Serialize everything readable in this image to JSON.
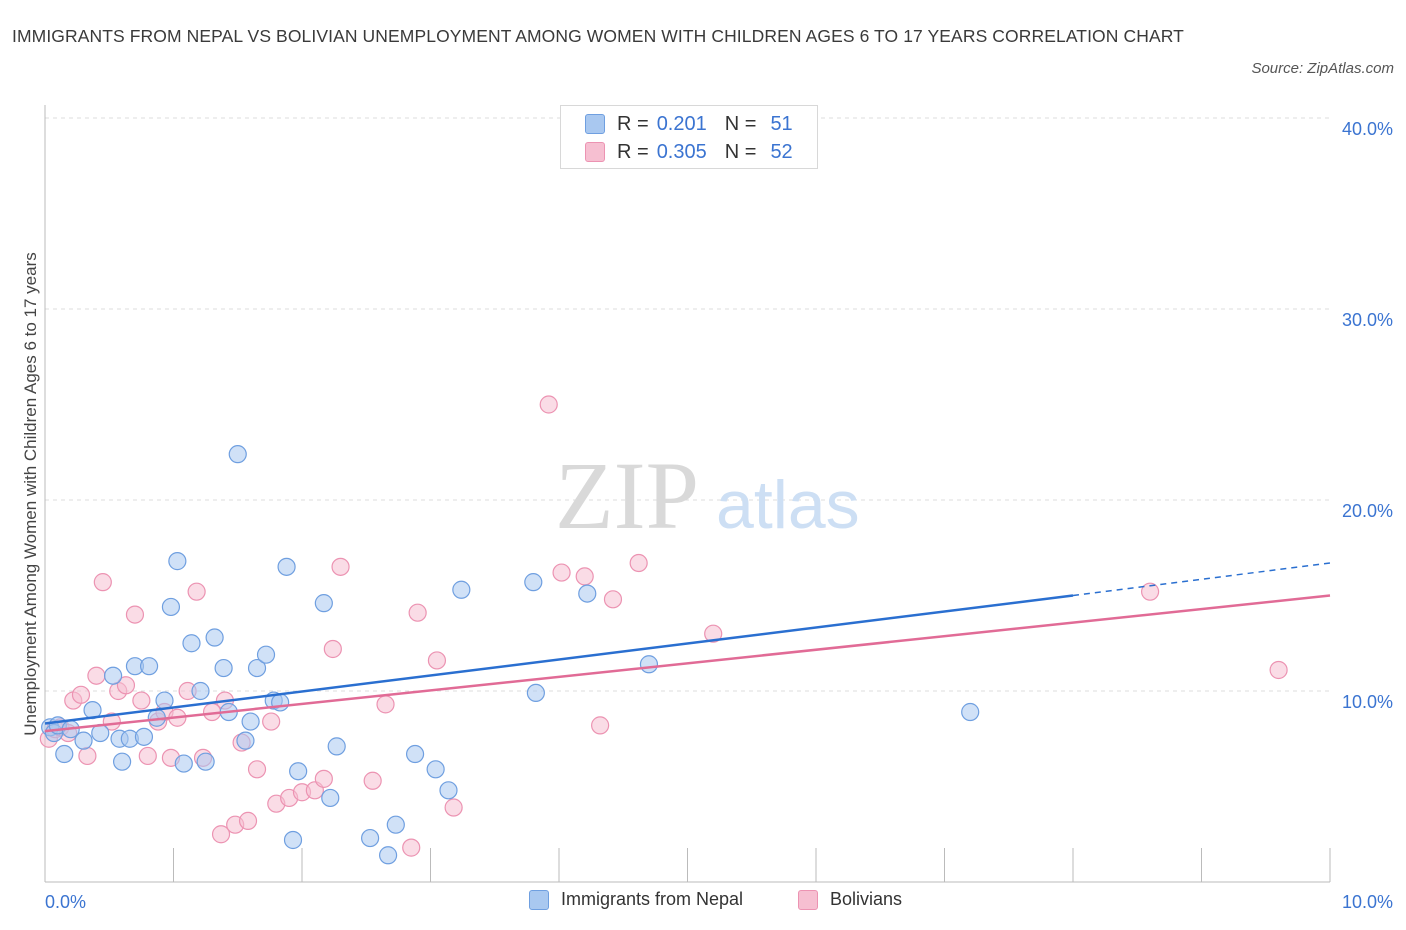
{
  "header": {
    "title": "IMMIGRANTS FROM NEPAL VS BOLIVIAN UNEMPLOYMENT AMONG WOMEN WITH CHILDREN AGES 6 TO 17 YEARS CORRELATION CHART",
    "source": "Source: ZipAtlas.com"
  },
  "watermark": {
    "zip": "ZIP",
    "atlas": "atlas"
  },
  "legend": {
    "rows": [
      {
        "r_label": "R =",
        "r_value": "0.201",
        "n_label": "N =",
        "n_value": "51"
      },
      {
        "r_label": "R =",
        "r_value": "0.305",
        "n_label": "N =",
        "n_value": "52"
      }
    ]
  },
  "bottom_legend": {
    "series1": "Immigrants from Nepal",
    "series2": "Bolivians"
  },
  "colors": {
    "nepal_fill": "#a9c8f0",
    "nepal_stroke": "#6f9fe0",
    "nepal_line": "#2a6fd0",
    "bolivian_fill": "#f6bfd1",
    "bolivian_stroke": "#ec93b2",
    "bolivian_line": "#e16b96",
    "axis_label": "#3b74d1",
    "grid": "#dcdcdc"
  },
  "chart_data": {
    "type": "scatter",
    "title": "IMMIGRANTS FROM NEPAL VS BOLIVIAN UNEMPLOYMENT AMONG WOMEN WITH CHILDREN AGES 6 TO 17 YEARS CORRELATION CHART",
    "xlabel": "",
    "ylabel": "Unemployment Among Women with Children Ages 6 to 17 years",
    "xlim": [
      0,
      10
    ],
    "ylim": [
      0,
      40
    ],
    "x_tick_labels": [
      "0.0%",
      "10.0%"
    ],
    "y_ticks": [
      10,
      20,
      30,
      40
    ],
    "y_tick_labels": [
      "10.0%",
      "20.0%",
      "30.0%",
      "40.0%"
    ],
    "grid": true,
    "legend_position": "top-center",
    "series": [
      {
        "name": "Immigrants from Nepal",
        "R": 0.201,
        "N": 51,
        "trend": {
          "x": [
            0,
            8.0
          ],
          "y": [
            8.3,
            15.0
          ],
          "dashed_to": [
            10,
            16.7
          ]
        },
        "points": [
          [
            0.04,
            8.1
          ],
          [
            0.07,
            7.8
          ],
          [
            0.1,
            8.2
          ],
          [
            0.15,
            6.7
          ],
          [
            0.2,
            8.0
          ],
          [
            0.3,
            7.4
          ],
          [
            0.37,
            9.0
          ],
          [
            0.43,
            7.8
          ],
          [
            0.53,
            10.8
          ],
          [
            0.58,
            7.5
          ],
          [
            0.6,
            6.3
          ],
          [
            0.66,
            7.5
          ],
          [
            0.7,
            11.3
          ],
          [
            0.77,
            7.6
          ],
          [
            0.81,
            11.3
          ],
          [
            0.87,
            8.6
          ],
          [
            0.93,
            9.5
          ],
          [
            0.98,
            14.4
          ],
          [
            1.03,
            16.8
          ],
          [
            1.08,
            6.2
          ],
          [
            1.14,
            12.5
          ],
          [
            1.21,
            10.0
          ],
          [
            1.25,
            6.3
          ],
          [
            1.32,
            12.8
          ],
          [
            1.39,
            11.2
          ],
          [
            1.43,
            8.9
          ],
          [
            1.5,
            22.4
          ],
          [
            1.56,
            7.4
          ],
          [
            1.6,
            8.4
          ],
          [
            1.65,
            11.2
          ],
          [
            1.72,
            11.9
          ],
          [
            1.78,
            9.5
          ],
          [
            1.83,
            9.4
          ],
          [
            1.88,
            16.5
          ],
          [
            1.93,
            2.2
          ],
          [
            1.97,
            5.8
          ],
          [
            2.17,
            14.6
          ],
          [
            2.27,
            7.1
          ],
          [
            2.22,
            4.4
          ],
          [
            2.53,
            2.3
          ],
          [
            2.67,
            1.4
          ],
          [
            2.73,
            3.0
          ],
          [
            2.88,
            6.7
          ],
          [
            3.04,
            5.9
          ],
          [
            3.14,
            4.8
          ],
          [
            3.24,
            15.3
          ],
          [
            3.8,
            15.7
          ],
          [
            3.82,
            9.9
          ],
          [
            4.22,
            15.1
          ],
          [
            4.7,
            11.4
          ],
          [
            7.2,
            8.9
          ]
        ]
      },
      {
        "name": "Bolivians",
        "R": 0.305,
        "N": 52,
        "trend": {
          "x": [
            0,
            10
          ],
          "y": [
            7.9,
            15.0
          ]
        },
        "points": [
          [
            0.03,
            7.5
          ],
          [
            0.08,
            8.0
          ],
          [
            0.12,
            8.1
          ],
          [
            0.18,
            7.8
          ],
          [
            0.22,
            9.5
          ],
          [
            0.28,
            9.8
          ],
          [
            0.33,
            6.6
          ],
          [
            0.4,
            10.8
          ],
          [
            0.45,
            15.7
          ],
          [
            0.52,
            8.4
          ],
          [
            0.57,
            10.0
          ],
          [
            0.63,
            10.3
          ],
          [
            0.7,
            14.0
          ],
          [
            0.75,
            9.5
          ],
          [
            0.8,
            6.6
          ],
          [
            0.88,
            8.4
          ],
          [
            0.93,
            8.9
          ],
          [
            0.98,
            6.5
          ],
          [
            1.03,
            8.6
          ],
          [
            1.11,
            10.0
          ],
          [
            1.18,
            15.2
          ],
          [
            1.23,
            6.5
          ],
          [
            1.3,
            8.9
          ],
          [
            1.37,
            2.5
          ],
          [
            1.4,
            9.5
          ],
          [
            1.48,
            3.0
          ],
          [
            1.53,
            7.3
          ],
          [
            1.58,
            3.2
          ],
          [
            1.65,
            5.9
          ],
          [
            1.76,
            8.4
          ],
          [
            1.8,
            4.1
          ],
          [
            1.9,
            4.4
          ],
          [
            2.0,
            4.7
          ],
          [
            2.1,
            4.8
          ],
          [
            2.17,
            5.4
          ],
          [
            2.24,
            12.2
          ],
          [
            2.3,
            16.5
          ],
          [
            2.55,
            5.3
          ],
          [
            2.65,
            9.3
          ],
          [
            2.85,
            1.8
          ],
          [
            2.9,
            14.1
          ],
          [
            3.05,
            11.6
          ],
          [
            3.18,
            3.9
          ],
          [
            3.92,
            25.0
          ],
          [
            4.02,
            16.2
          ],
          [
            4.2,
            16.0
          ],
          [
            4.32,
            8.2
          ],
          [
            4.42,
            14.8
          ],
          [
            4.62,
            16.7
          ],
          [
            5.2,
            13.0
          ],
          [
            8.6,
            15.2
          ],
          [
            9.6,
            11.1
          ]
        ]
      }
    ]
  }
}
